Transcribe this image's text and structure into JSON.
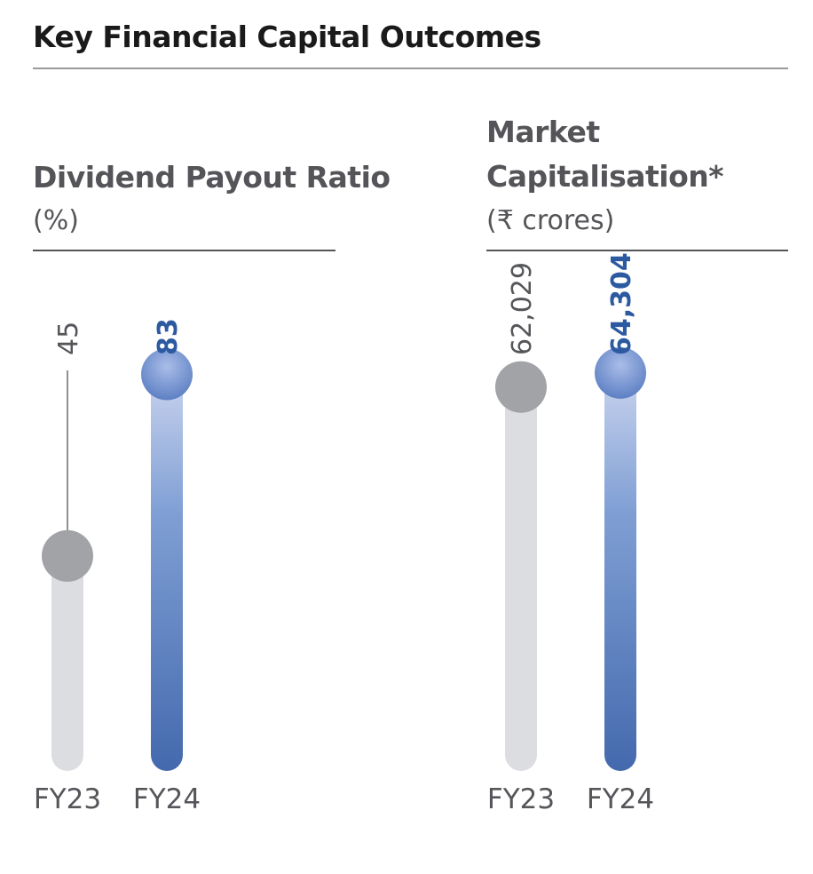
{
  "header": {
    "title": "Key Financial Capital Outcomes"
  },
  "colors": {
    "muted_track": "#dcdde0",
    "muted_dot": "#a2a3a6",
    "accent_top": "#c9d3ee",
    "accent_mid": "#7f9fd4",
    "accent_bottom": "#4469ad",
    "accent_text": "#2c5aa0",
    "text": "#55565a"
  },
  "chart_data": [
    {
      "type": "bar",
      "title": "Dividend Payout Ratio",
      "subtitle": "(%)",
      "categories": [
        "FY23",
        "FY24"
      ],
      "values": [
        45,
        83
      ],
      "value_labels": [
        "45",
        "83"
      ],
      "ylim": [
        0,
        100
      ]
    },
    {
      "type": "bar",
      "title": "Market Capitalisation*",
      "subtitle": "(₹ crores)",
      "categories": [
        "FY23",
        "FY24"
      ],
      "values": [
        62029,
        64304
      ],
      "value_labels": [
        "62,029",
        "64,304"
      ],
      "ylim": [
        0,
        77200
      ]
    }
  ]
}
